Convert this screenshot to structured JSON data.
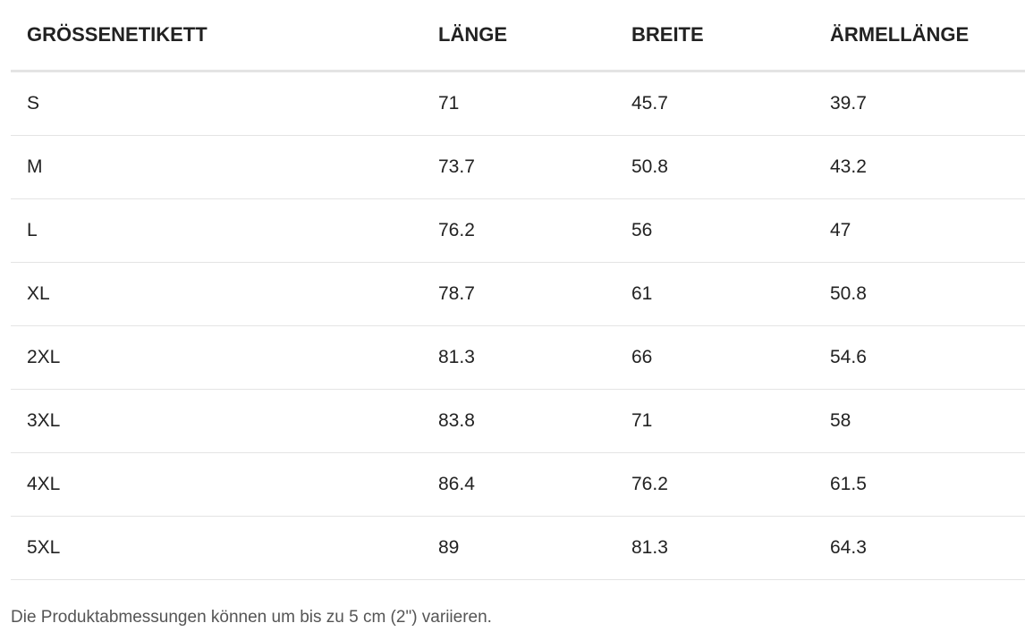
{
  "table": {
    "headers": [
      "GRÖSSENETIKETT",
      "LÄNGE",
      "BREITE",
      "ÄRMELLÄNGE"
    ],
    "rows": [
      [
        "S",
        "71",
        "45.7",
        "39.7"
      ],
      [
        "M",
        "73.7",
        "50.8",
        "43.2"
      ],
      [
        "L",
        "76.2",
        "56",
        "47"
      ],
      [
        "XL",
        "78.7",
        "61",
        "50.8"
      ],
      [
        "2XL",
        "81.3",
        "66",
        "54.6"
      ],
      [
        "3XL",
        "83.8",
        "71",
        "58"
      ],
      [
        "4XL",
        "86.4",
        "76.2",
        "61.5"
      ],
      [
        "5XL",
        "89",
        "81.3",
        "64.3"
      ]
    ]
  },
  "note": "Die Produktabmessungen können um bis zu 5 cm (2\") variieren."
}
